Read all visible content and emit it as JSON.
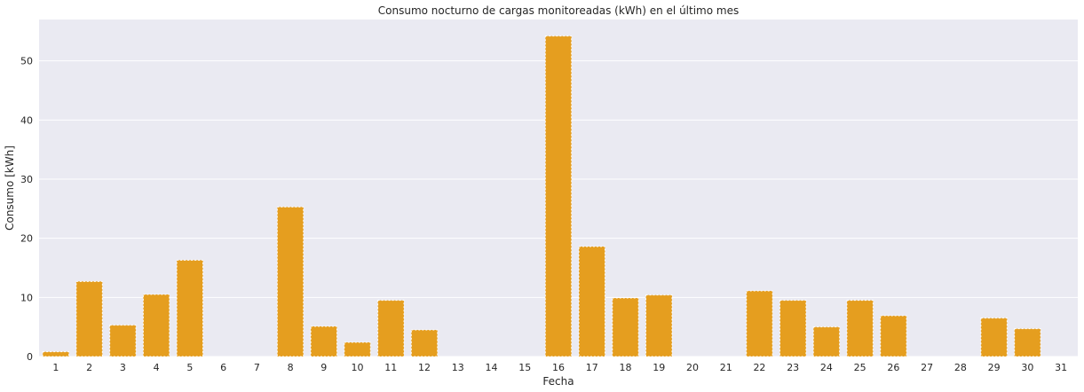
{
  "chart_data": {
    "type": "bar",
    "title": "Consumo nocturno de cargas monitoreadas (kWh) en el último mes",
    "xlabel": "Fecha",
    "ylabel": "Consumo [kWh]",
    "ylim": [
      0,
      57
    ],
    "yticks": [
      0,
      10,
      20,
      30,
      40,
      50
    ],
    "grid": true,
    "categories": [
      "1",
      "2",
      "3",
      "4",
      "5",
      "6",
      "7",
      "8",
      "9",
      "10",
      "11",
      "12",
      "13",
      "14",
      "15",
      "16",
      "17",
      "18",
      "19",
      "20",
      "21",
      "22",
      "23",
      "24",
      "25",
      "26",
      "27",
      "28",
      "29",
      "30",
      "31"
    ],
    "values": [
      0.8,
      12.7,
      5.3,
      10.5,
      16.3,
      0,
      0,
      25.3,
      5.1,
      2.4,
      9.5,
      4.5,
      0,
      0,
      0,
      54.2,
      18.6,
      9.9,
      10.4,
      0,
      0,
      11.1,
      9.5,
      5.0,
      9.5,
      6.9,
      0,
      0,
      6.5,
      4.7,
      0
    ],
    "colors": {
      "bar": "#e59e1f",
      "bar_edge": "#ffffff",
      "plot_background": "#eaeaf2",
      "grid": "#ffffff"
    }
  }
}
